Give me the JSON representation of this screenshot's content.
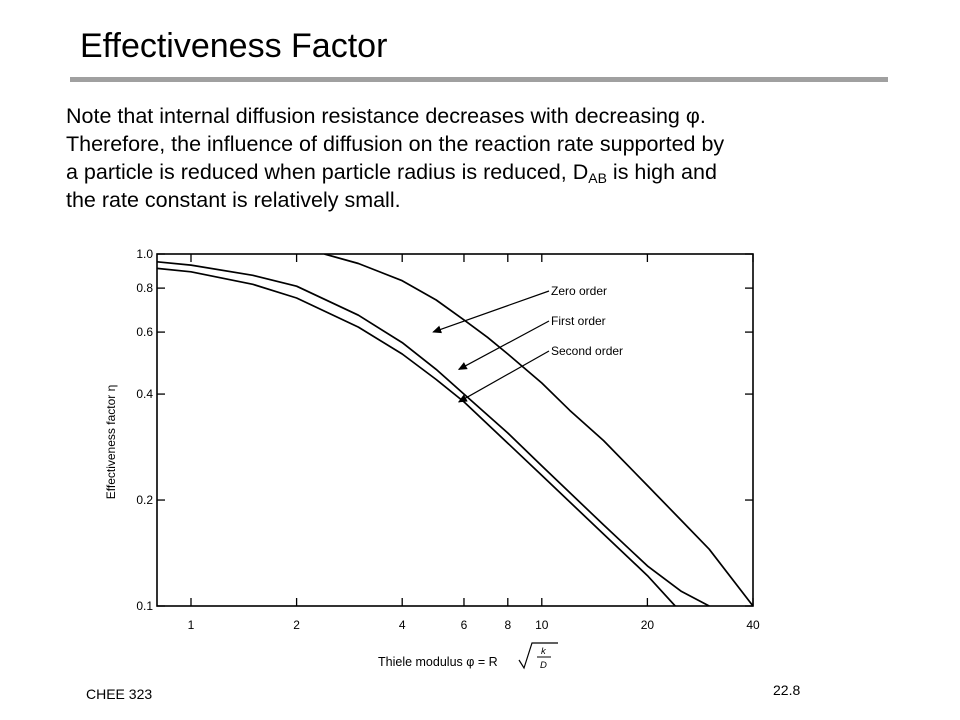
{
  "slide": {
    "title": "Effectiveness Factor",
    "para_line1": "Note that internal diffusion resistance decreases with decreasing ",
    "phi": "φ",
    "para_line1_end": ".",
    "para_line2": "Therefore, the influence of diffusion on the reaction rate supported by",
    "para_line3a": "a particle is reduced when particle radius is reduced, D",
    "para_sub": "AB",
    "para_line3b": " is high and",
    "para_line4": "the rate constant is relatively small.",
    "footer_left": "CHEE 323",
    "footer_right": "22.8"
  },
  "chart_data": {
    "type": "line",
    "x_scale": "log",
    "y_scale": "log",
    "xlim": [
      0.8,
      40
    ],
    "ylim": [
      0.1,
      1.0
    ],
    "xticks": [
      1,
      2,
      4,
      6,
      8,
      10,
      20,
      40
    ],
    "xtick_labels": [
      "1",
      "2",
      "4",
      "6",
      "8",
      "10",
      "20",
      "40"
    ],
    "yticks": [
      1.0,
      0.8,
      0.6,
      0.4,
      0.2,
      0.1
    ],
    "ytick_labels": [
      "1.0",
      "0.8",
      "0.6",
      "0.4",
      "0.2",
      "0.1"
    ],
    "xlabel": "Thiele modulus φ = R",
    "xlabel_frac_num": "k",
    "xlabel_frac_den": "D",
    "ylabel": "Effectiveness factor η",
    "grid": false,
    "series": [
      {
        "name": "Zero order",
        "x": [
          2.4,
          3,
          4,
          5,
          6,
          7,
          8,
          10,
          12,
          15,
          20,
          25,
          30,
          40
        ],
        "y": [
          1.0,
          0.94,
          0.84,
          0.74,
          0.65,
          0.58,
          0.52,
          0.43,
          0.36,
          0.295,
          0.22,
          0.175,
          0.145,
          0.1
        ]
      },
      {
        "name": "First order",
        "x": [
          0.8,
          1,
          1.5,
          2,
          3,
          4,
          5,
          6,
          8,
          10,
          15,
          20,
          25,
          30
        ],
        "y": [
          0.95,
          0.93,
          0.87,
          0.81,
          0.67,
          0.56,
          0.47,
          0.4,
          0.31,
          0.25,
          0.17,
          0.13,
          0.11,
          0.1
        ]
      },
      {
        "name": "Second order",
        "x": [
          0.8,
          1,
          1.5,
          2,
          3,
          4,
          5,
          6,
          8,
          10,
          15,
          20,
          24
        ],
        "y": [
          0.91,
          0.89,
          0.82,
          0.75,
          0.62,
          0.52,
          0.44,
          0.38,
          0.29,
          0.235,
          0.16,
          0.122,
          0.1
        ]
      }
    ],
    "annotations": [
      {
        "label": "Zero order",
        "points_to": "Zero order",
        "x": 4.9,
        "y": 0.6
      },
      {
        "label": "First order",
        "points_to": "First order",
        "x": 5.8,
        "y": 0.47
      },
      {
        "label": "Second order",
        "points_to": "Second order",
        "x": 5.8,
        "y": 0.38
      }
    ]
  }
}
